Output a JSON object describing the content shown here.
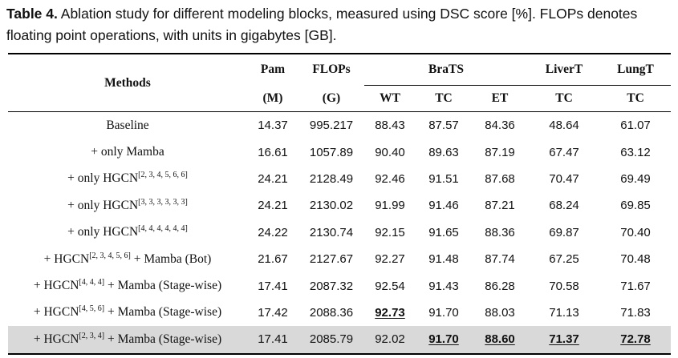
{
  "caption": {
    "label": "Table 4.",
    "text": " Ablation study for different modeling blocks, measured using DSC score [%]. FLOPs denotes floating point operations, with units in gigabytes [GB]."
  },
  "header": {
    "methods": "Methods",
    "pam": "Pam",
    "pam_unit": "(M)",
    "flops": "FLOPs",
    "flops_unit": "(G)",
    "brats": "BraTS",
    "livert": "LiverT",
    "lungt": "LungT",
    "wt": "WT",
    "tc": "TC",
    "et": "ET",
    "liver_tc": "TC",
    "lung_tc": "TC"
  },
  "rows": [
    {
      "prefix": "Baseline",
      "sup": "",
      "suffix": "",
      "pam": "14.37",
      "flops": "995.217",
      "wt": "88.43",
      "tc": "87.57",
      "et": "84.36",
      "liver": "48.64",
      "lung": "61.07",
      "best": []
    },
    {
      "prefix": "+ only Mamba",
      "sup": "",
      "suffix": "",
      "pam": "16.61",
      "flops": "1057.89",
      "wt": "90.40",
      "tc": "89.63",
      "et": "87.19",
      "liver": "67.47",
      "lung": "63.12",
      "best": []
    },
    {
      "prefix": "+ only HGCN",
      "sup": "[2, 3, 4, 5, 6, 6]",
      "suffix": "",
      "pam": "24.21",
      "flops": "2128.49",
      "wt": "92.46",
      "tc": "91.51",
      "et": "87.68",
      "liver": "70.47",
      "lung": "69.49",
      "best": []
    },
    {
      "prefix": "+ only HGCN",
      "sup": "[3, 3, 3, 3, 3, 3]",
      "suffix": "",
      "pam": "24.21",
      "flops": "2130.02",
      "wt": "91.99",
      "tc": "91.46",
      "et": "87.21",
      "liver": "68.24",
      "lung": "69.85",
      "best": []
    },
    {
      "prefix": "+ only HGCN",
      "sup": "[4, 4, 4, 4, 4, 4]",
      "suffix": "",
      "pam": "24.22",
      "flops": "2130.74",
      "wt": "92.15",
      "tc": "91.65",
      "et": "88.36",
      "liver": "69.87",
      "lung": "70.40",
      "best": []
    },
    {
      "prefix": "+ HGCN",
      "sup": "[2, 3, 4, 5, 6]",
      "suffix": " + Mamba (Bot)",
      "pam": "21.67",
      "flops": "2127.67",
      "wt": "92.27",
      "tc": "91.48",
      "et": "87.74",
      "liver": "67.25",
      "lung": "70.48",
      "best": []
    },
    {
      "prefix": "+ HGCN",
      "sup": "[4, 4, 4]",
      "suffix": " + Mamba (Stage-wise)",
      "pam": "17.41",
      "flops": "2087.32",
      "wt": "92.54",
      "tc": "91.43",
      "et": "86.28",
      "liver": "70.58",
      "lung": "71.67",
      "best": []
    },
    {
      "prefix": "+ HGCN",
      "sup": "[4, 5, 6]",
      "suffix": " + Mamba (Stage-wise)",
      "pam": "17.42",
      "flops": "2088.36",
      "wt": "92.73",
      "tc": "91.70",
      "et": "88.03",
      "liver": "71.13",
      "lung": "71.83",
      "best": [
        "wt"
      ]
    },
    {
      "prefix": "+ HGCN",
      "sup": "[2, 3, 4]",
      "suffix": " + Mamba (Stage-wise)",
      "pam": "17.41",
      "flops": "2085.79",
      "wt": "92.02",
      "tc": "91.70",
      "et": "88.60",
      "liver": "71.37",
      "lung": "72.78",
      "best": [
        "tc",
        "et",
        "liver",
        "lung"
      ],
      "highlight": true
    }
  ]
}
